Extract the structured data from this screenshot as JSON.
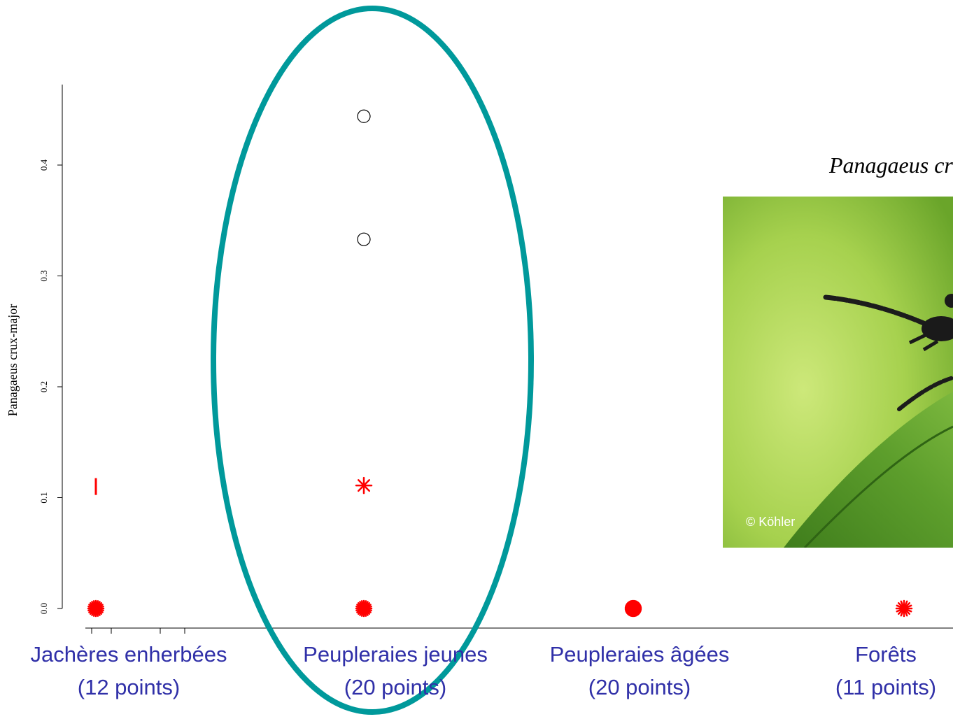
{
  "species_title": "Panagaeus crux-major",
  "photo": {
    "credit": "© Köhler",
    "description": "beetle on a leaf against a green background"
  },
  "colors": {
    "star": "#ff0000",
    "circle": "#000000",
    "ellipse": "#00999b",
    "category_label": "#3030a8"
  },
  "chart_data": {
    "type": "scatter",
    "ylabel": "Panagaeus crux-major",
    "ylim": [
      0,
      0.46
    ],
    "yticks": [
      {
        "value": 0.0,
        "label": "0.0"
      },
      {
        "value": 0.1,
        "label": "0.1"
      },
      {
        "value": 0.2,
        "label": "0.2"
      },
      {
        "value": 0.3,
        "label": "0.3"
      },
      {
        "value": 0.4,
        "label": "0.4"
      }
    ],
    "categories": [
      {
        "line1": "Jachères enherbées",
        "line2": "(12 points)"
      },
      {
        "line1": "Peupleraies jeunes",
        "line2": "(20 points)"
      },
      {
        "line1": "Peupleraies âgées",
        "line2": "(20 points)"
      },
      {
        "line1": "Forêts",
        "line2": "(11 points)"
      }
    ],
    "points": [
      {
        "category": 0,
        "value": 0.0,
        "marker": "star",
        "count": 3
      },
      {
        "category": 0,
        "value": 0.11,
        "marker": "dash",
        "count": 1
      },
      {
        "category": 1,
        "value": 0.0,
        "marker": "star",
        "count": 3
      },
      {
        "category": 1,
        "value": 0.111,
        "marker": "star",
        "count": 1
      },
      {
        "category": 1,
        "value": 0.333,
        "marker": "circle",
        "count": 1
      },
      {
        "category": 1,
        "value": 0.444,
        "marker": "circle",
        "count": 1
      },
      {
        "category": 2,
        "value": 0.0,
        "marker": "star",
        "count": 6
      },
      {
        "category": 3,
        "value": 0.0,
        "marker": "star",
        "count": 2
      }
    ],
    "highlight": {
      "category": 1,
      "shape": "ellipse"
    }
  }
}
